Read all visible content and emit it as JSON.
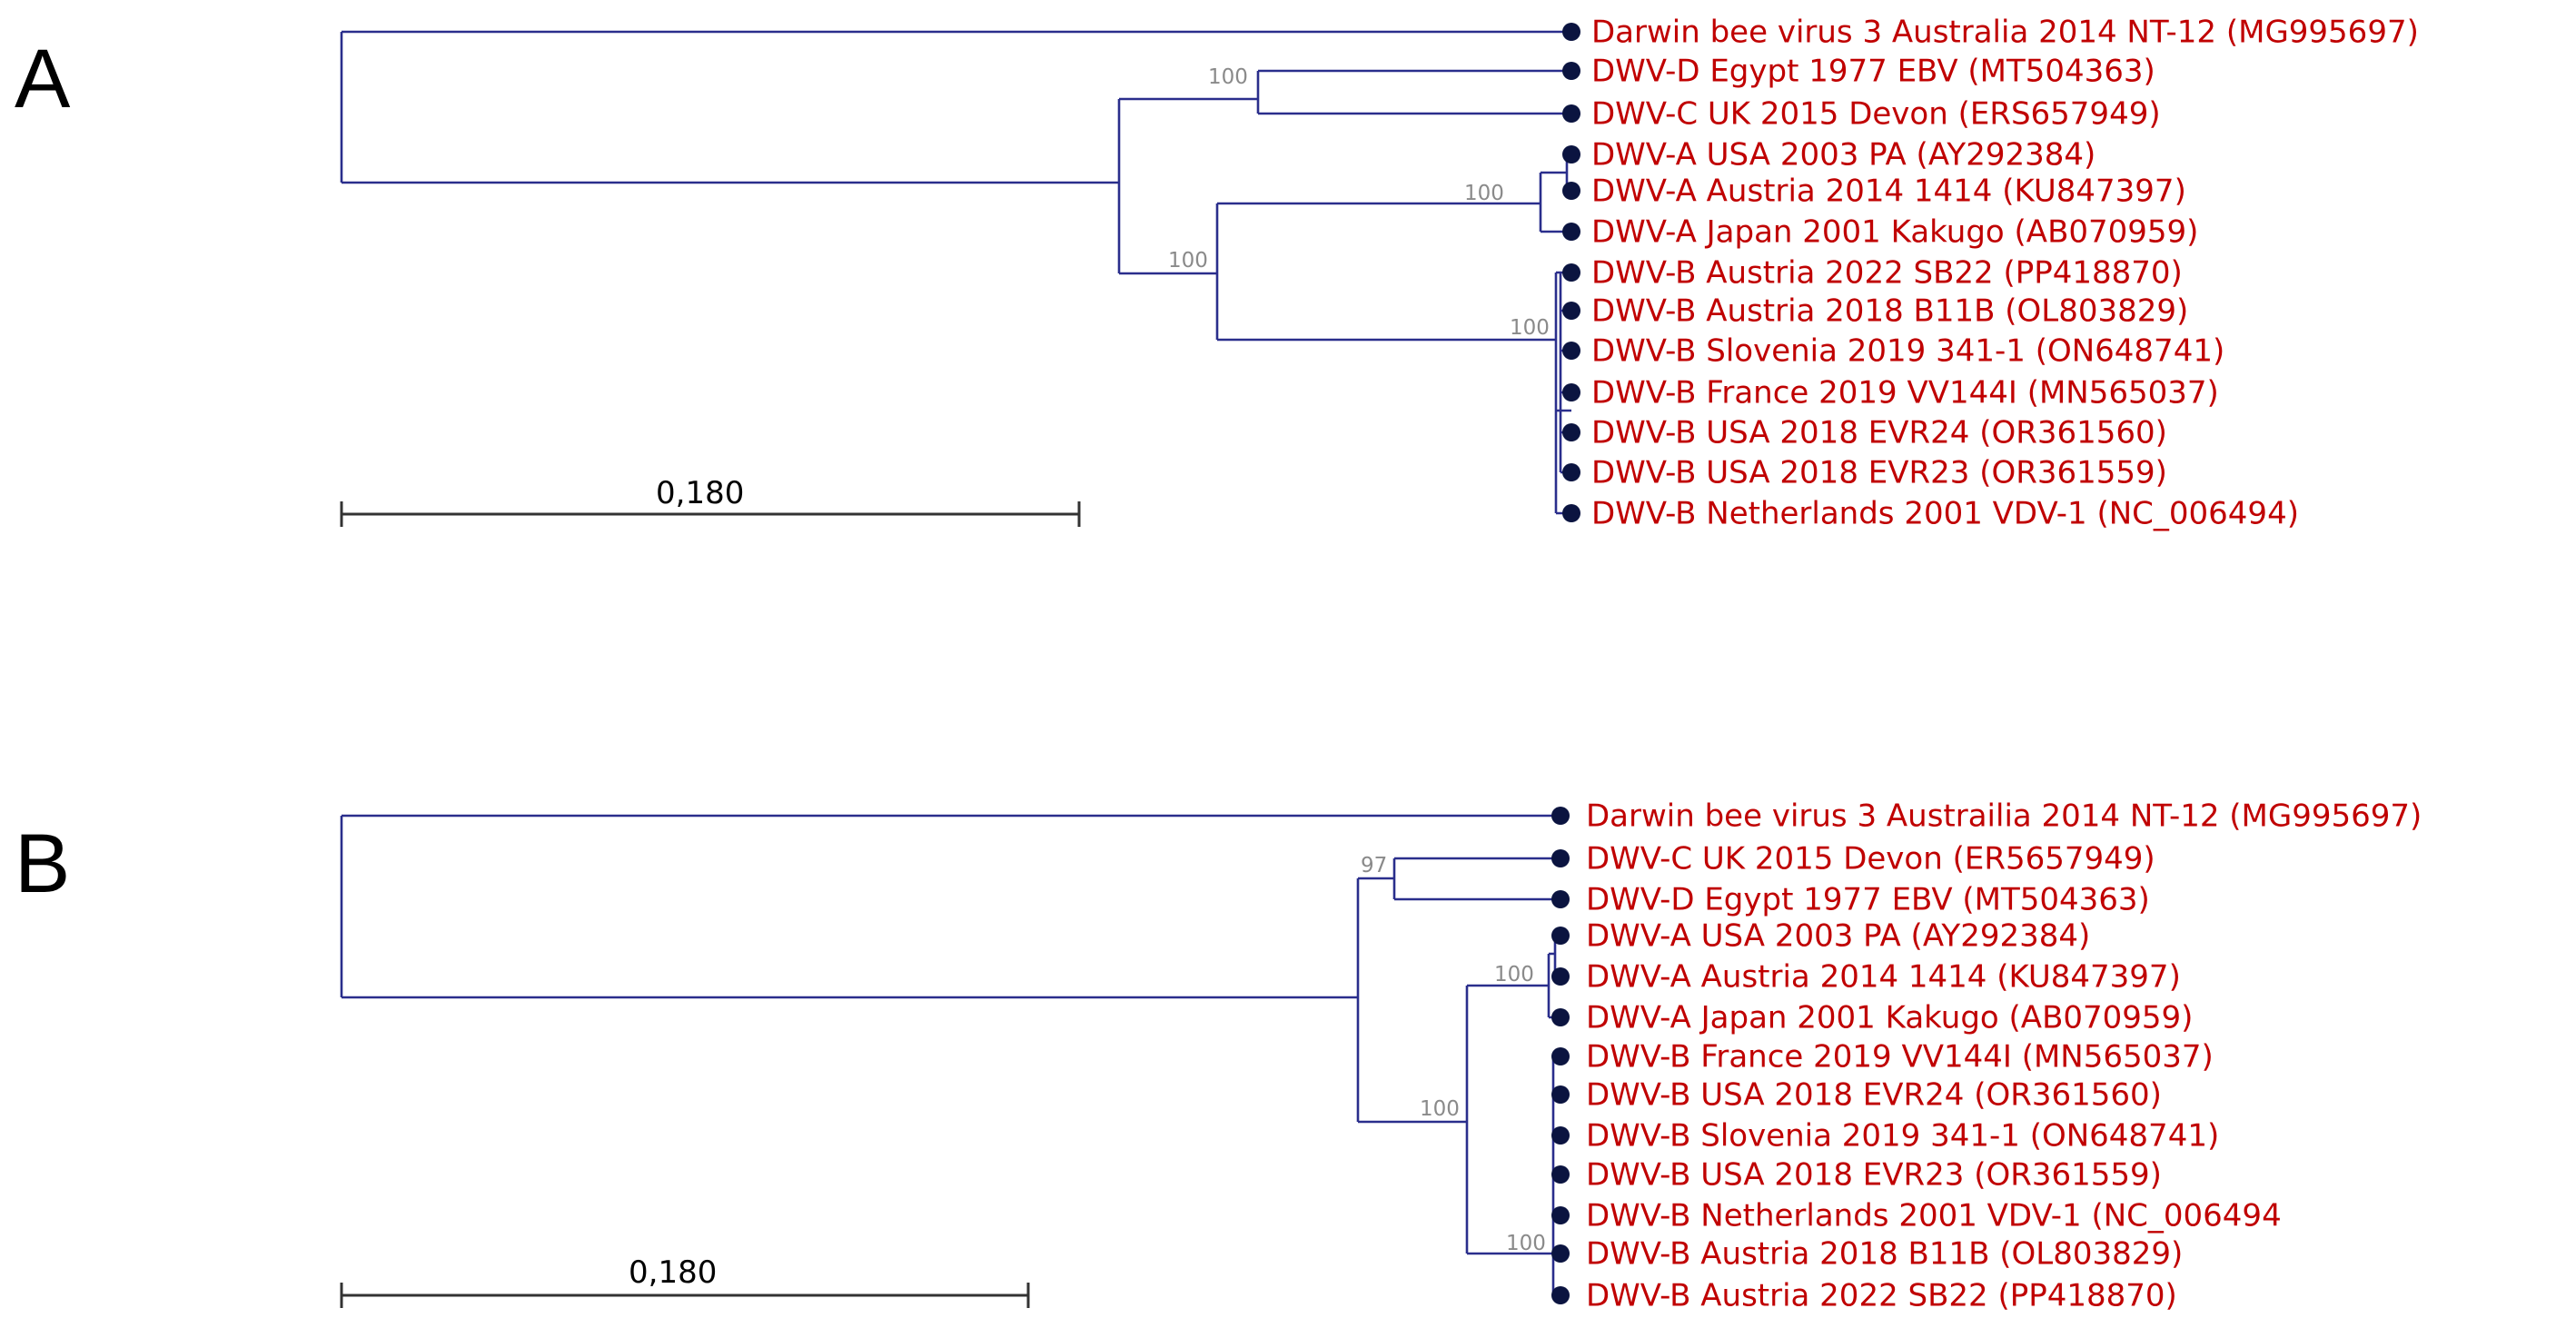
{
  "figure": {
    "panels": [
      {
        "id": "A",
        "letter": "A",
        "scale_label": "0,180",
        "scale_value": 0.18,
        "branch_color": "#2a2e8c",
        "label_color": "#c00000",
        "tips": [
          "Darwin bee virus 3 Australia 2014 NT-12 (MG995697)",
          "DWV-D Egypt 1977 EBV (MT504363)",
          "DWV-C UK 2015 Devon (ERS657949)",
          "DWV-A USA 2003 PA (AY292384)",
          "DWV-A Austria 2014 1414 (KU847397)",
          "DWV-A Japan 2001 Kakugo (AB070959)",
          "DWV-B Austria 2022 SB22 (PP418870)",
          "DWV-B Austria 2018 B11B (OL803829)",
          "DWV-B Slovenia 2019 341-1 (ON648741)",
          "DWV-B France 2019 VV144I (MN565037)",
          "DWV-B USA 2018 EVR24 (OR361560)",
          "DWV-B USA 2018 EVR23 (OR361559)",
          "DWV-B Netherlands 2001 VDV-1 (NC_006494)"
        ],
        "support_values": [
          "100",
          "100",
          "100",
          "100"
        ]
      },
      {
        "id": "B",
        "letter": "B",
        "scale_label": "0,180",
        "scale_value": 0.18,
        "branch_color": "#2a2e8c",
        "label_color": "#c00000",
        "tips": [
          "Darwin bee virus 3 Austrailia 2014 NT-12 (MG995697)",
          "DWV-C UK 2015 Devon  (ER5657949)",
          "DWV-D Egypt 1977 EBV (MT504363)",
          "DWV-A USA 2003 PA (AY292384)",
          "DWV-A Austria 2014 1414 (KU847397)",
          "DWV-A Japan 2001 Kakugo (AB070959)",
          "DWV-B France 2019 VV144I (MN565037)",
          "DWV-B USA 2018 EVR24 (OR361560)",
          "DWV-B Slovenia 2019 341-1 (ON648741)",
          "DWV-B USA 2018 EVR23 (OR361559)",
          "DWV-B Netherlands 2001 VDV-1 (NC_006494",
          "DWV-B Austria 2018 B11B (OL803829)",
          "DWV-B Austria 2022 SB22 (PP418870)"
        ],
        "support_values": [
          "97",
          "100",
          "100",
          "100"
        ]
      }
    ]
  }
}
